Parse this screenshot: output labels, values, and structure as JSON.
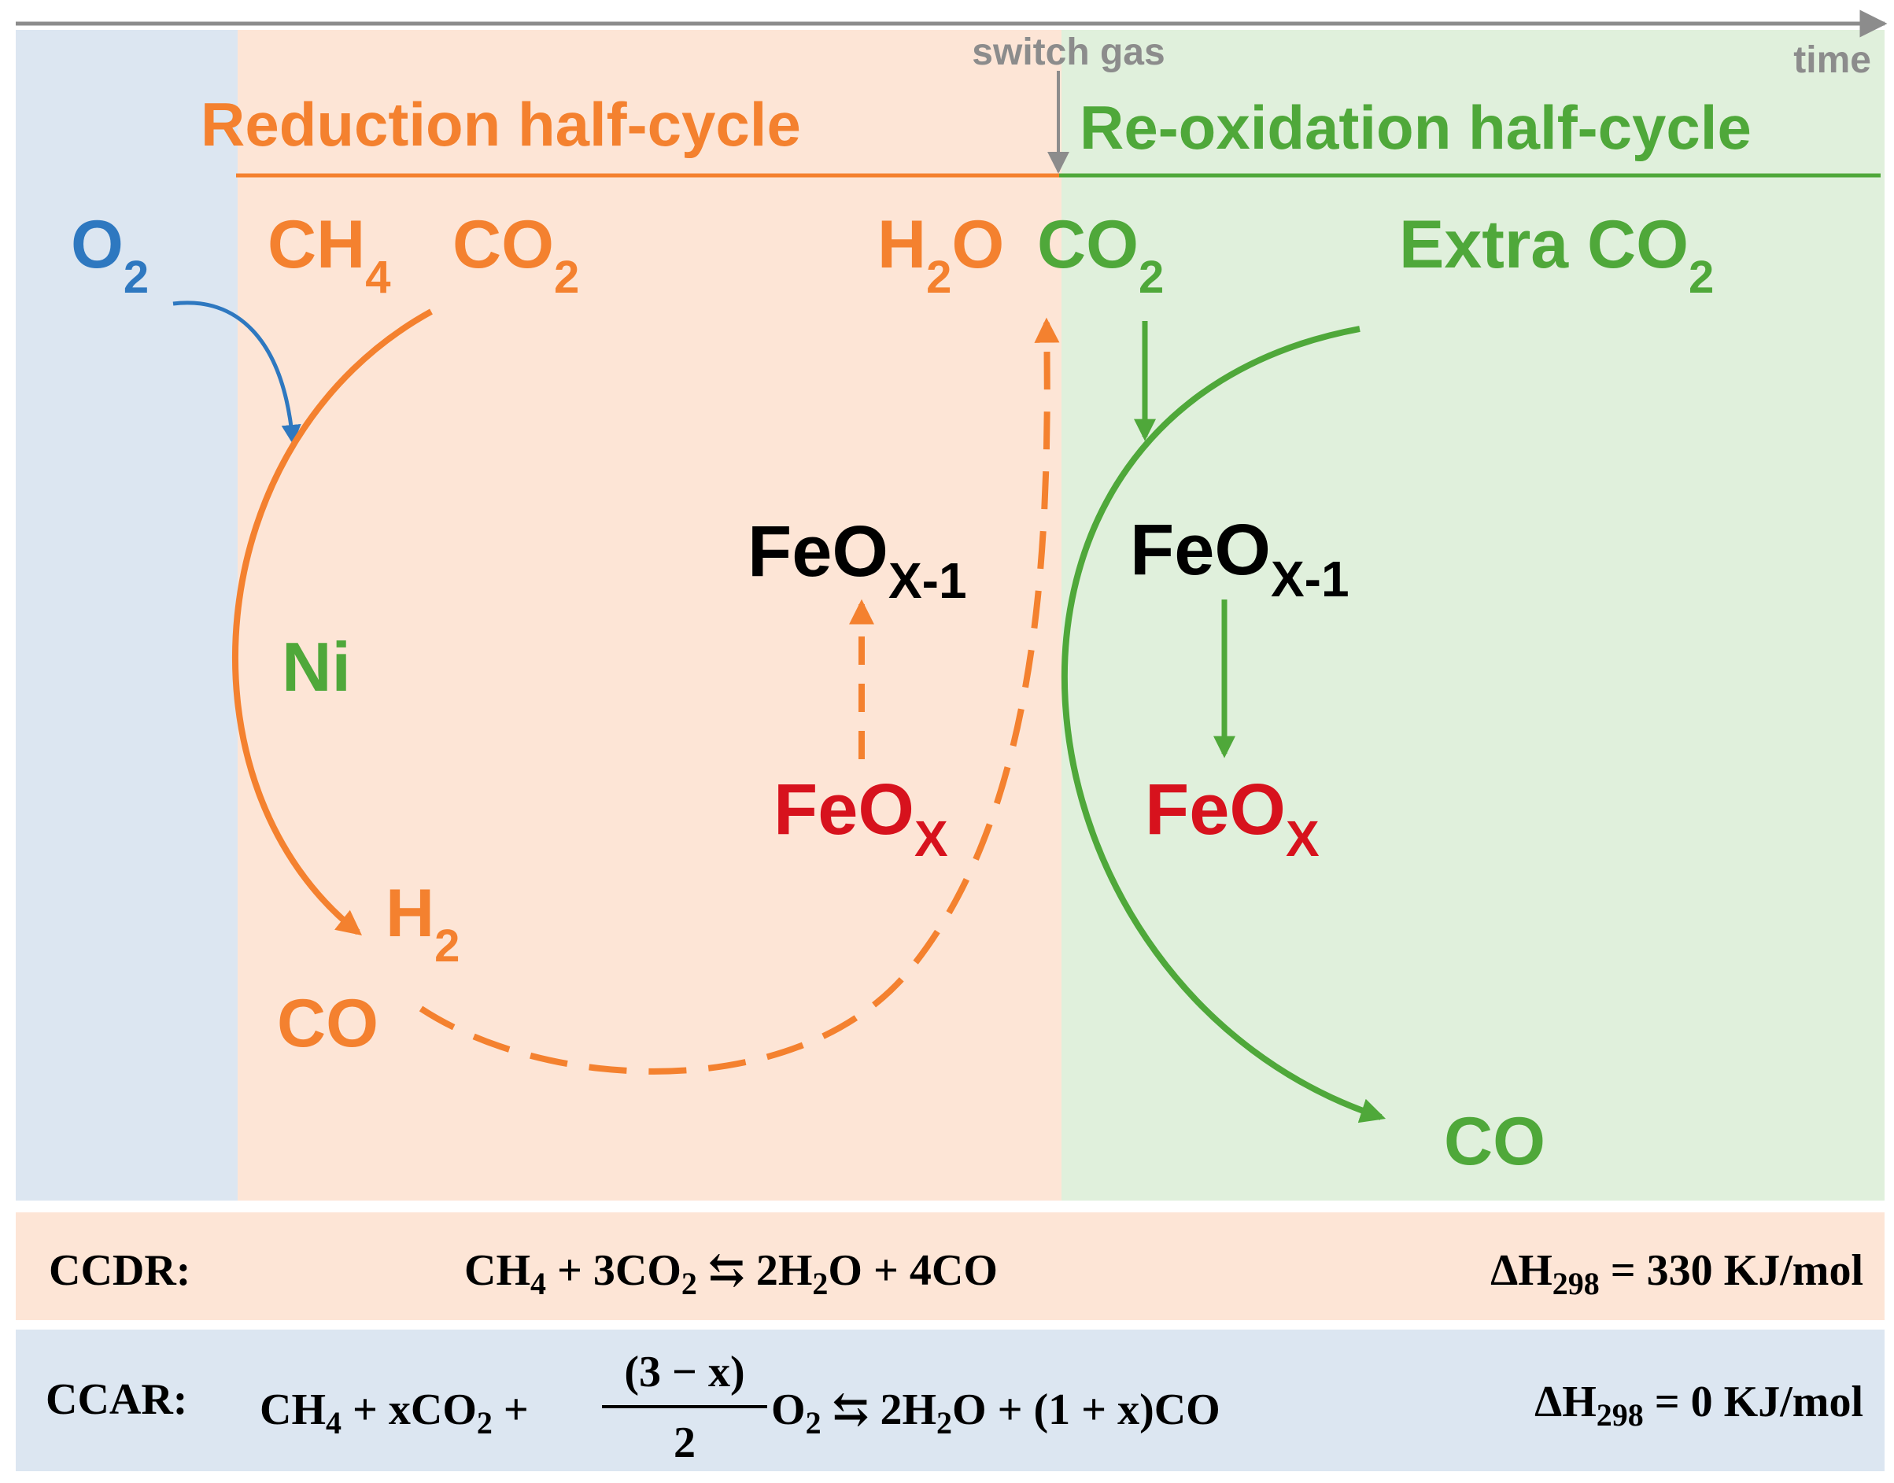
{
  "timeline": {
    "time_label": "time",
    "switch_label": "switch gas"
  },
  "phases": {
    "reduction_label": "Reduction half-cycle",
    "reoxidation_label": "Re-oxidation half-cycle"
  },
  "species": {
    "o2": {
      "main": "O",
      "sub": "2"
    },
    "ch4": {
      "main": "CH",
      "sub": "4"
    },
    "co2_feed": {
      "main": "CO",
      "sub": "2"
    },
    "h2o_out": {
      "main": "H",
      "sub": "2",
      "tail": "O"
    },
    "co2_out": {
      "main": "CO",
      "sub": "2"
    },
    "extra_co2": {
      "main": "Extra CO",
      "sub": "2"
    },
    "ni": "Ni",
    "h2": {
      "main": "H",
      "sub": "2"
    },
    "co_reduction": "CO",
    "feox_reduced_left": {
      "main": "FeO",
      "sub": "X-1"
    },
    "feox_left": {
      "main": "FeO",
      "sub": "X"
    },
    "feox_reduced_right": {
      "main": "FeO",
      "sub": "X-1"
    },
    "feox_right": {
      "main": "FeO",
      "sub": "X"
    },
    "co_reoxidation": "CO"
  },
  "equations": {
    "ccdr": {
      "name": "CCDR:",
      "lhs1_main": "CH",
      "lhs1_sub": "4",
      "plus1": " + 3CO",
      "plus1_sub": "2",
      "arrow": " ⇆ ",
      "rhs1": "2H",
      "rhs1_sub": "2",
      "rhs1_tail": "O + 4CO",
      "dh_main": "ΔH",
      "dh_sub": "298",
      "dh_value": " = 330 KJ/mol"
    },
    "ccar": {
      "name": "CCAR:",
      "lhs1_main": "CH",
      "lhs1_sub": "4",
      "plus1": " + xCO",
      "plus1_sub": "2",
      "plus2": " +",
      "frac_num": "(3 − x)",
      "frac_den": "2",
      "o2_main": "O",
      "o2_sub": "2",
      "arrow": " ⇆ ",
      "rhs1": "2H",
      "rhs1_sub": "2",
      "rhs1_tail": "O + (1 + x)CO",
      "dh_main": "ΔH",
      "dh_sub": "298",
      "dh_value": " = 0 KJ/mol"
    }
  },
  "colors": {
    "blue_bg": "#dce6f1",
    "orange_bg": "#fde5d6",
    "green_bg": "#e0f0dc",
    "orange": "#f4812f",
    "green": "#4fa83a",
    "blue": "#2e78c0",
    "red": "#d7121d",
    "gray": "#8c8c8c",
    "black": "#000000"
  }
}
